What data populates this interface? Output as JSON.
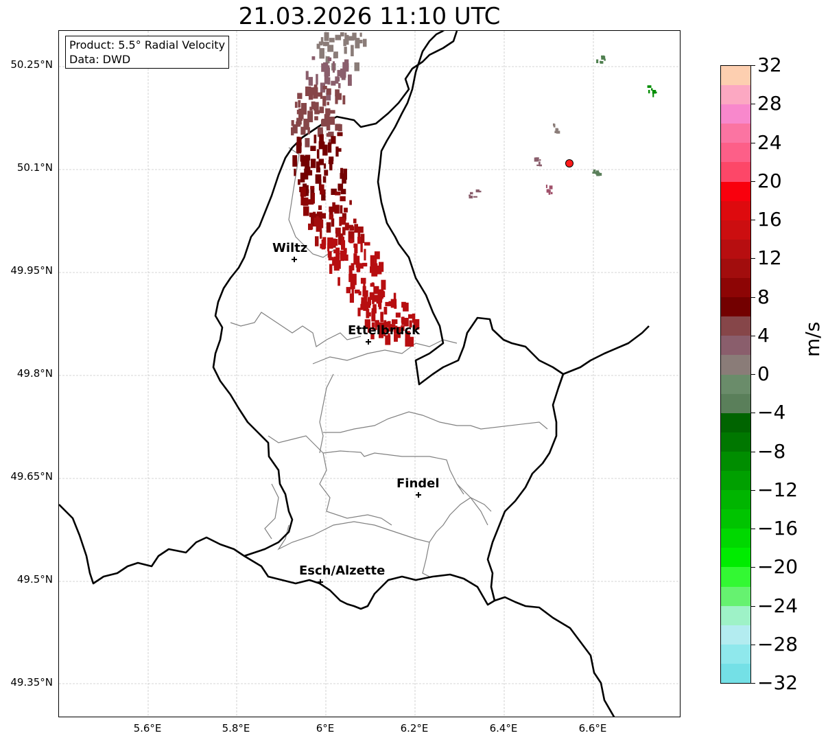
{
  "title": "21.03.2026 11:10 UTC",
  "info": {
    "product": "Product: 5.5° Radial Velocity",
    "source": "Data: DWD"
  },
  "axes": {
    "lat_labels": [
      "50.25°N",
      "50.1°N",
      "49.95°N",
      "49.8°N",
      "49.65°N",
      "49.5°N",
      "49.35°N"
    ],
    "lon_labels": [
      "5.6°E",
      "5.8°E",
      "6°E",
      "6.2°E",
      "6.4°E",
      "6.6°E"
    ]
  },
  "cities": [
    {
      "name": "Wiltz",
      "lon": 5.93,
      "lat": 49.967
    },
    {
      "name": "Ettelbruck",
      "lon": 6.1,
      "lat": 49.85
    },
    {
      "name": "Findel",
      "lon": 6.21,
      "lat": 49.627
    },
    {
      "name": "Esch/Alzette",
      "lon": 5.99,
      "lat": 49.5
    }
  ],
  "radar_site": {
    "lon": 6.548,
    "lat": 50.11,
    "color": "#ff1a1a"
  },
  "colorbar": {
    "unit": "m/s",
    "tick_labels": [
      "32",
      "28",
      "24",
      "20",
      "16",
      "12",
      "8",
      "4",
      "0",
      "−4",
      "−8",
      "−12",
      "−16",
      "−20",
      "−24",
      "−28",
      "−32"
    ],
    "colors_top_to_bottom": [
      "#fdcfb0",
      "#fca8c2",
      "#f888cc",
      "#fb74a2",
      "#fd5f88",
      "#fd4768",
      "#f9000d",
      "#de0a0e",
      "#cc0e10",
      "#b70e10",
      "#a20d0d",
      "#8d0505",
      "#730000",
      "#864649",
      "#8a5e6c",
      "#8a7c78",
      "#6a8c6a",
      "#5a7f5a",
      "#006400",
      "#007700",
      "#008d00",
      "#00a000",
      "#00b500",
      "#00c400",
      "#00d800",
      "#00ec00",
      "#33f833",
      "#66f270",
      "#9ef2c7",
      "#b3ecf0",
      "#8fe8ec",
      "#74e0e6"
    ]
  }
}
